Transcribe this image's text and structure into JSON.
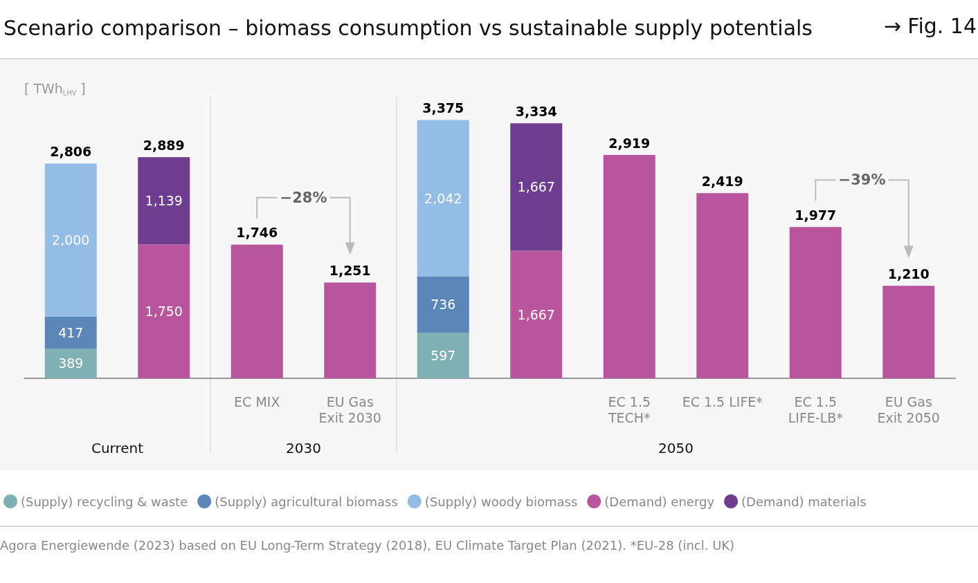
{
  "chart_data": {
    "type": "bar",
    "title": "Scenario comparison – biomass consumption vs sustainable supply potentials",
    "ylabel": "[ TWh$_{LHV}$ ]",
    "stacked": true,
    "legend": "bottom",
    "categories": [
      null,
      null,
      "EC MIX",
      "EU Gas\nExit 2030",
      null,
      null,
      "EC 1.5\nTECH*",
      "EC 1.5 LIFE*",
      "EC 1.5\nLIFE-LB*",
      "EU Gas\nExit 2050"
    ],
    "series": [
      {
        "name": "(Supply) recycling & waste",
        "color": "#7fb0b4",
        "values": [
          389,
          null,
          null,
          null,
          597,
          null,
          null,
          null,
          null,
          null
        ],
        "value_labels": [
          "389",
          null,
          null,
          null,
          "597",
          null,
          null,
          null,
          null,
          null
        ]
      },
      {
        "name": "(Supply) agricultural biomass",
        "color": "#5b87b8",
        "values": [
          417,
          null,
          null,
          null,
          736,
          null,
          null,
          null,
          null,
          null
        ],
        "value_labels": [
          "417",
          null,
          null,
          null,
          "736",
          null,
          null,
          null,
          null,
          null
        ]
      },
      {
        "name": "(Supply) woody biomass",
        "color": "#94bde6",
        "values": [
          2000,
          null,
          null,
          null,
          2042,
          null,
          null,
          null,
          null,
          null
        ],
        "value_labels": [
          "2,000",
          null,
          null,
          null,
          "2,042",
          null,
          null,
          null,
          null,
          null
        ]
      },
      {
        "name": "(Demand) energy",
        "color": "#b9559d",
        "values": [
          null,
          1750,
          1746,
          1251,
          null,
          1667,
          2919,
          2419,
          1977,
          1210
        ],
        "value_labels": [
          null,
          "1,750",
          null,
          null,
          null,
          "1,667",
          null,
          null,
          null,
          null
        ]
      },
      {
        "name": "(Demand) materials",
        "color": "#6f3d8f",
        "values": [
          null,
          1139,
          null,
          null,
          null,
          1667,
          null,
          null,
          null,
          null
        ],
        "value_labels": [
          null,
          "1,139",
          null,
          null,
          null,
          "1,667",
          null,
          null,
          null,
          null
        ]
      }
    ],
    "totals": [
      "2,806",
      "2,889",
      "1,746",
      "1,251",
      "3,375",
      "3,334",
      "2,919",
      "2,419",
      "1,977",
      "1,210"
    ],
    "annotations": [
      "→ Fig. 14",
      "Current",
      "2030",
      "2050",
      "−28%",
      "−39%",
      "Agora Energiewende (2023) based on EU Long-Term Strategy (2018), EU Climate Target Plan (2021). *EU-28 (incl. UK)"
    ]
  }
}
